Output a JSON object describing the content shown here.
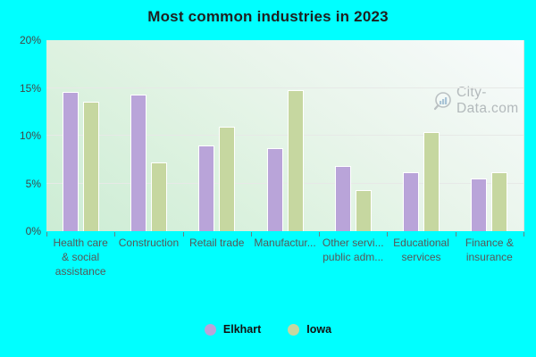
{
  "watermark": {
    "text": "City-Data.com"
  },
  "colors": {
    "background": "#00ffff",
    "elkhart": "#b9a4d9",
    "iowa": "#c6d7a0",
    "bar_border": "#ffffff"
  },
  "chart_data": {
    "type": "bar",
    "title": "Most common industries in 2023",
    "categories": [
      "Health care & social assistance",
      "Construction",
      "Retail trade",
      "Manufactur...",
      "Other servi... public adm...",
      "Educational services",
      "Finance & insurance"
    ],
    "category_display_lines": [
      [
        "Health care",
        "& social",
        "assistance"
      ],
      [
        "Construction"
      ],
      [
        "Retail trade"
      ],
      [
        "Manufactur..."
      ],
      [
        "Other servi...",
        "public adm..."
      ],
      [
        "Educational",
        "services"
      ],
      [
        "Finance &",
        "insurance"
      ]
    ],
    "series": [
      {
        "name": "Elkhart",
        "color": "#b9a4d9",
        "values": [
          14.6,
          14.3,
          9.0,
          8.7,
          6.8,
          6.2,
          5.5
        ]
      },
      {
        "name": "Iowa",
        "color": "#c6d7a0",
        "values": [
          13.6,
          7.2,
          10.9,
          14.8,
          4.3,
          10.4,
          6.2
        ]
      }
    ],
    "ylim": [
      0,
      20
    ],
    "yticks": [
      {
        "value": 0,
        "label": "0%"
      },
      {
        "value": 5,
        "label": "5%"
      },
      {
        "value": 10,
        "label": "10%"
      },
      {
        "value": 15,
        "label": "15%"
      },
      {
        "value": 20,
        "label": "20%"
      }
    ],
    "grid": true,
    "legend_position": "bottom"
  }
}
